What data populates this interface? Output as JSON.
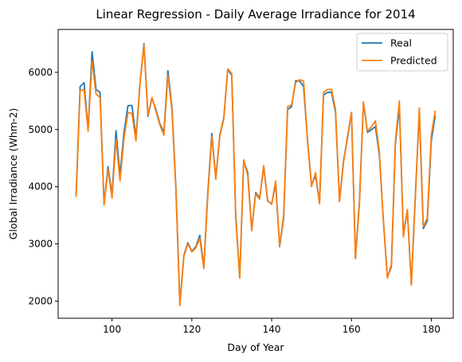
{
  "chart_data": {
    "type": "line",
    "title": "Linear Regression - Daily Average Irradiance for 2014",
    "xlabel": "Day of Year",
    "ylabel": "Global Irradiance (Whm-2)",
    "xlim": [
      86.5,
      185.5
    ],
    "ylim": [
      1700,
      6750
    ],
    "xticks": [
      100,
      120,
      140,
      160,
      180
    ],
    "yticks": [
      2000,
      3000,
      4000,
      5000,
      6000
    ],
    "legend_position": "top-right",
    "grid": false,
    "x": [
      91,
      92,
      93,
      94,
      95,
      96,
      97,
      98,
      99,
      100,
      101,
      102,
      103,
      104,
      105,
      106,
      107,
      108,
      109,
      110,
      111,
      112,
      113,
      114,
      115,
      116,
      117,
      118,
      119,
      120,
      121,
      122,
      123,
      124,
      125,
      126,
      127,
      128,
      129,
      130,
      131,
      132,
      133,
      134,
      135,
      136,
      137,
      138,
      139,
      140,
      141,
      142,
      143,
      144,
      145,
      146,
      147,
      148,
      149,
      150,
      151,
      152,
      153,
      154,
      155,
      156,
      157,
      158,
      159,
      160,
      161,
      162,
      163,
      164,
      165,
      166,
      167,
      168,
      169,
      170,
      171,
      172,
      173,
      174,
      175,
      176,
      177,
      178,
      179,
      180,
      181
    ],
    "series": [
      {
        "name": "Real",
        "color": "#1f77b4",
        "values": [
          3850,
          5750,
          5820,
          5000,
          6360,
          5700,
          5650,
          3700,
          4350,
          3850,
          4980,
          4200,
          4950,
          5420,
          5420,
          4850,
          5800,
          6500,
          5230,
          5550,
          5350,
          5100,
          4950,
          6030,
          5400,
          4000,
          1950,
          2800,
          3020,
          2870,
          2950,
          3150,
          2600,
          3900,
          4930,
          4150,
          4900,
          5200,
          6050,
          5950,
          3500,
          2420,
          4450,
          4250,
          3250,
          3900,
          3800,
          4350,
          3750,
          3700,
          4050,
          2950,
          3450,
          5350,
          5400,
          5850,
          5850,
          5750,
          4800,
          4020,
          4200,
          3720,
          5600,
          5650,
          5650,
          5300,
          3750,
          4450,
          4850,
          5300,
          2760,
          3750,
          5480,
          4950,
          5000,
          5050,
          4550,
          3400,
          2420,
          2600,
          4750,
          5400,
          3180,
          3580,
          2300,
          3850,
          5300,
          3270,
          3400,
          4800,
          5250
        ]
      },
      {
        "name": "Predicted",
        "color": "#ff7f0e",
        "values": [
          3820,
          5680,
          5700,
          4970,
          6200,
          5620,
          5560,
          3680,
          4300,
          3800,
          4830,
          4100,
          4850,
          5300,
          5280,
          4800,
          5780,
          6480,
          5250,
          5560,
          5320,
          5080,
          4900,
          5950,
          5350,
          3950,
          1920,
          2780,
          3000,
          2860,
          2930,
          3100,
          2570,
          3850,
          4880,
          4130,
          4880,
          5180,
          6060,
          5980,
          3450,
          2400,
          4470,
          4200,
          3230,
          3880,
          3780,
          4370,
          3760,
          3690,
          4100,
          2960,
          3500,
          5400,
          5430,
          5820,
          5870,
          5850,
          4780,
          4000,
          4250,
          3700,
          5650,
          5700,
          5700,
          5350,
          3740,
          4420,
          4880,
          5300,
          2740,
          3700,
          5480,
          4970,
          5050,
          5150,
          4600,
          3400,
          2400,
          2640,
          4800,
          5500,
          3120,
          3600,
          2280,
          3800,
          5380,
          3300,
          3450,
          4900,
          5330
        ]
      }
    ]
  }
}
